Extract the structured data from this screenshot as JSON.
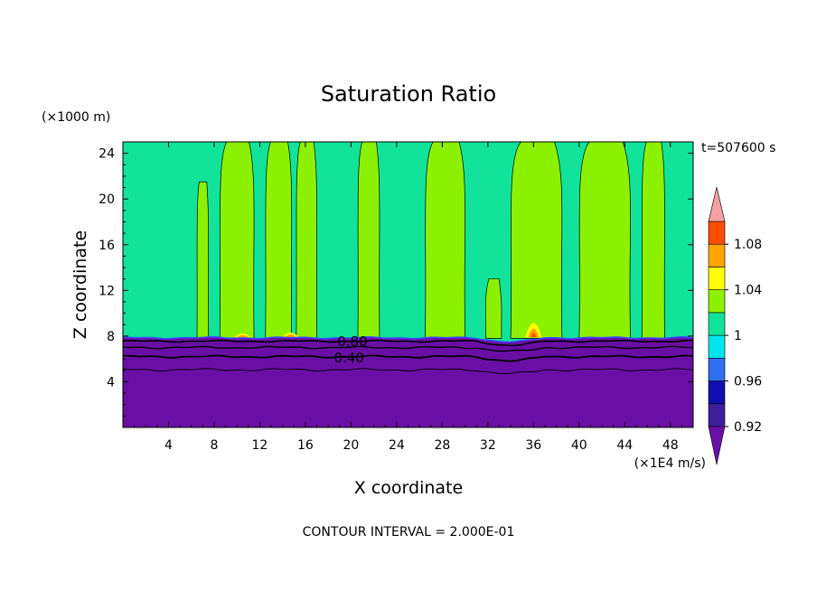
{
  "chart_data": {
    "type": "heatmap",
    "title": "Saturation Ratio",
    "xlabel": "X coordinate",
    "ylabel": "Z coordinate",
    "x_unit": "(×1E4 m/s)",
    "y_unit": "(×1000 m)",
    "time_label": "t=507600 s",
    "footer": "CONTOUR INTERVAL = 2.000E-01",
    "xlim": [
      0,
      50
    ],
    "ylim": [
      0,
      25
    ],
    "x_ticks": [
      4,
      8,
      12,
      16,
      20,
      24,
      28,
      32,
      36,
      40,
      44,
      48
    ],
    "y_ticks": [
      4,
      8,
      12,
      16,
      20,
      24
    ],
    "colorbar": {
      "levels": [
        0.92,
        0.94,
        0.96,
        0.98,
        1.0,
        1.02,
        1.04,
        1.06,
        1.08,
        1.1
      ],
      "tick_labels": [
        "0.92",
        "0.96",
        "1",
        "1.04",
        "1.08"
      ],
      "tick_values": [
        0.92,
        0.96,
        1.0,
        1.04,
        1.08
      ],
      "colors": [
        "#3e1f9c",
        "#1010b0",
        "#2f6ff0",
        "#00e6ee",
        "#11e39a",
        "#8cf100",
        "#ffff00",
        "#ffa500",
        "#ff4d00",
        "#ff2a2a"
      ],
      "under_color": "#6a0fa6",
      "over_color": "#f5a0a0"
    },
    "contour_labels": [
      {
        "text": "0.80",
        "x": 18.8,
        "z": 7.5
      },
      {
        "text": "0.40",
        "x": 18.5,
        "z": 6.1
      }
    ],
    "regions": {
      "below_8km": "dry layer, value < 0.92",
      "above_8km_background": "1.00 - 1.02",
      "moist_columns_x": [
        [
          6.5,
          7.5
        ],
        [
          8.5,
          11.5
        ],
        [
          12.5,
          14.8
        ],
        [
          15.2,
          17.0
        ],
        [
          20.6,
          22.5
        ],
        [
          26.5,
          30.0
        ],
        [
          31.8,
          33.2
        ],
        [
          34.0,
          38.5
        ],
        [
          40.0,
          44.5
        ],
        [
          45.5,
          47.5
        ]
      ],
      "peaks": [
        {
          "x": 10.5,
          "z": 8.3,
          "max": 1.06
        },
        {
          "x": 14.7,
          "z": 8.4,
          "max": 1.06
        },
        {
          "x": 36.0,
          "z": 8.6,
          "max": 1.1
        }
      ]
    }
  }
}
